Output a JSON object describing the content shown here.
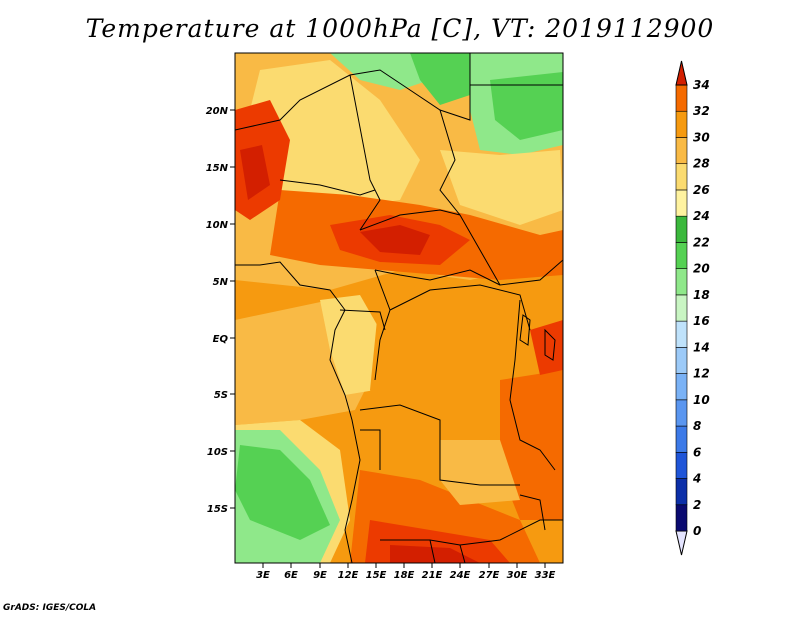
{
  "title": "Temperature at 1000hPa [C], VT: 2019112900",
  "credit": "GrADS: IGES/COLA",
  "lat_labels": [
    "20N",
    "15N",
    "10N",
    "5N",
    "EQ",
    "5S",
    "10S",
    "15S"
  ],
  "lon_labels": [
    "3E",
    "6E",
    "9E",
    "12E",
    "15E",
    "18E",
    "21E",
    "24E",
    "27E",
    "30E",
    "33E"
  ],
  "colorbar": {
    "labels": [
      "0",
      "2",
      "4",
      "6",
      "8",
      "10",
      "12",
      "14",
      "16",
      "18",
      "20",
      "22",
      "24",
      "26",
      "28",
      "30",
      "32",
      "34"
    ],
    "colors": [
      "#0a0a70",
      "#0c2fa8",
      "#1f55d8",
      "#3c7ae8",
      "#5a96f0",
      "#7ab2f6",
      "#9ccaf8",
      "#bfe2fb",
      "#c9f5c3",
      "#8fe88a",
      "#55d153",
      "#3bb83c",
      "#fff3a0",
      "#fbdb70",
      "#f9ba45",
      "#f69a10",
      "#f56a00",
      "#ec3a00",
      "#d31f00"
    ],
    "under_color": "#e4e4ff"
  },
  "colors": {
    "hot": "#e83800",
    "warm": "#f59b10",
    "mild": "#fbd46a",
    "green": "#55d153",
    "light_green": "#8fe88a"
  }
}
